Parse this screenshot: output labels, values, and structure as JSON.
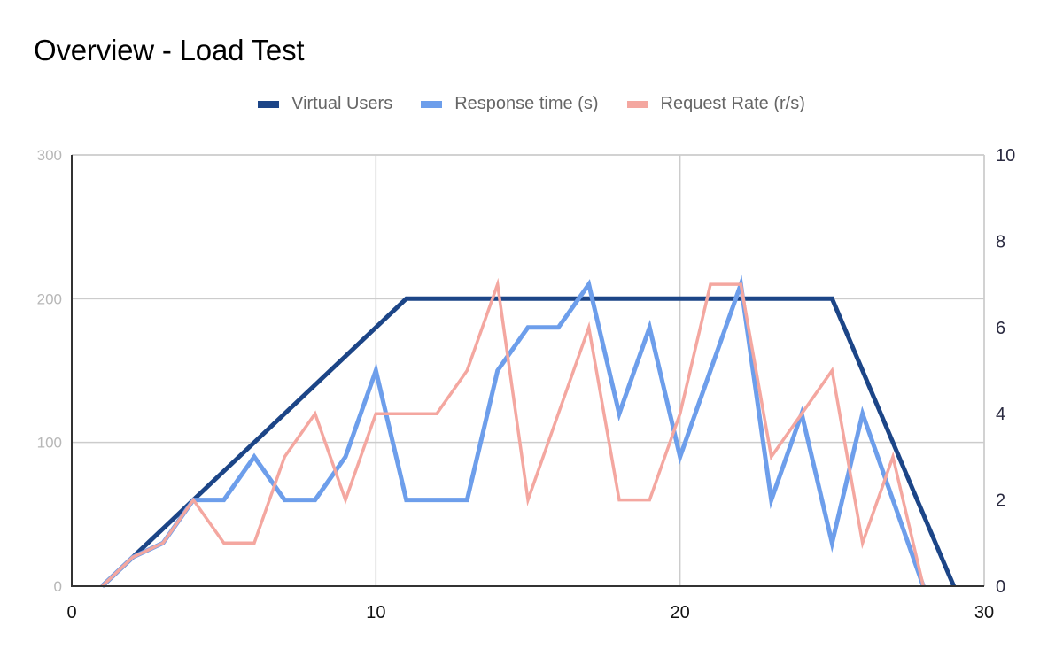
{
  "title": "Overview - Load Test",
  "legend": [
    {
      "label": "Virtual Users",
      "color": "#1c4587"
    },
    {
      "label": "Response time (s)",
      "color": "#6d9eeb"
    },
    {
      "label": "Request Rate (r/s)",
      "color": "#f4a7a0"
    }
  ],
  "axes": {
    "left_ticks": [
      "0",
      "100",
      "200",
      "300"
    ],
    "right_ticks": [
      "0",
      "2",
      "4",
      "6",
      "8",
      "10"
    ],
    "x_ticks": [
      "0",
      "10",
      "20",
      "30"
    ]
  },
  "chart_data": {
    "type": "line",
    "title": "Overview - Load Test",
    "xlabel": "",
    "ylabel": "",
    "xlim": [
      0,
      30
    ],
    "ylim_left": [
      0,
      300
    ],
    "ylim_right": [
      0,
      10
    ],
    "grid": true,
    "legend_position": "top",
    "series": [
      {
        "name": "Virtual Users",
        "axis": "left",
        "color": "#1c4587",
        "x": [
          1,
          2,
          3,
          4,
          5,
          6,
          7,
          8,
          9,
          10,
          11,
          12,
          13,
          14,
          15,
          16,
          17,
          18,
          19,
          20,
          21,
          22,
          23,
          24,
          25,
          26,
          27,
          28,
          29
        ],
        "values": [
          0,
          20,
          40,
          60,
          80,
          100,
          120,
          140,
          160,
          180,
          200,
          200,
          200,
          200,
          200,
          200,
          200,
          200,
          200,
          200,
          200,
          200,
          200,
          200,
          200,
          150,
          100,
          50,
          0
        ]
      },
      {
        "name": "Response time (s)",
        "axis": "right",
        "color": "#6d9eeb",
        "x": [
          1,
          2,
          3,
          4,
          5,
          6,
          7,
          8,
          9,
          10,
          11,
          12,
          13,
          14,
          15,
          16,
          17,
          18,
          19,
          20,
          21,
          22,
          23,
          24,
          25,
          26,
          27,
          28
        ],
        "values": [
          0,
          0.67,
          1,
          2,
          2,
          3,
          2,
          2,
          3,
          5,
          2,
          2,
          2,
          5,
          6,
          6,
          7,
          4,
          6,
          3,
          5,
          7,
          2,
          4,
          1,
          4,
          2,
          0
        ]
      },
      {
        "name": "Request Rate (r/s)",
        "axis": "right",
        "color": "#f4a7a0",
        "x": [
          1,
          2,
          3,
          4,
          5,
          6,
          7,
          8,
          9,
          10,
          11,
          12,
          13,
          14,
          15,
          16,
          17,
          18,
          19,
          20,
          21,
          22,
          23,
          24,
          25,
          26,
          27,
          28
        ],
        "values": [
          0,
          0.67,
          1,
          2,
          1,
          1,
          3,
          4,
          2,
          4,
          4,
          4,
          5,
          7,
          2,
          4,
          6,
          2,
          2,
          4,
          7,
          7,
          3,
          4,
          5,
          1,
          3,
          0
        ]
      }
    ]
  }
}
